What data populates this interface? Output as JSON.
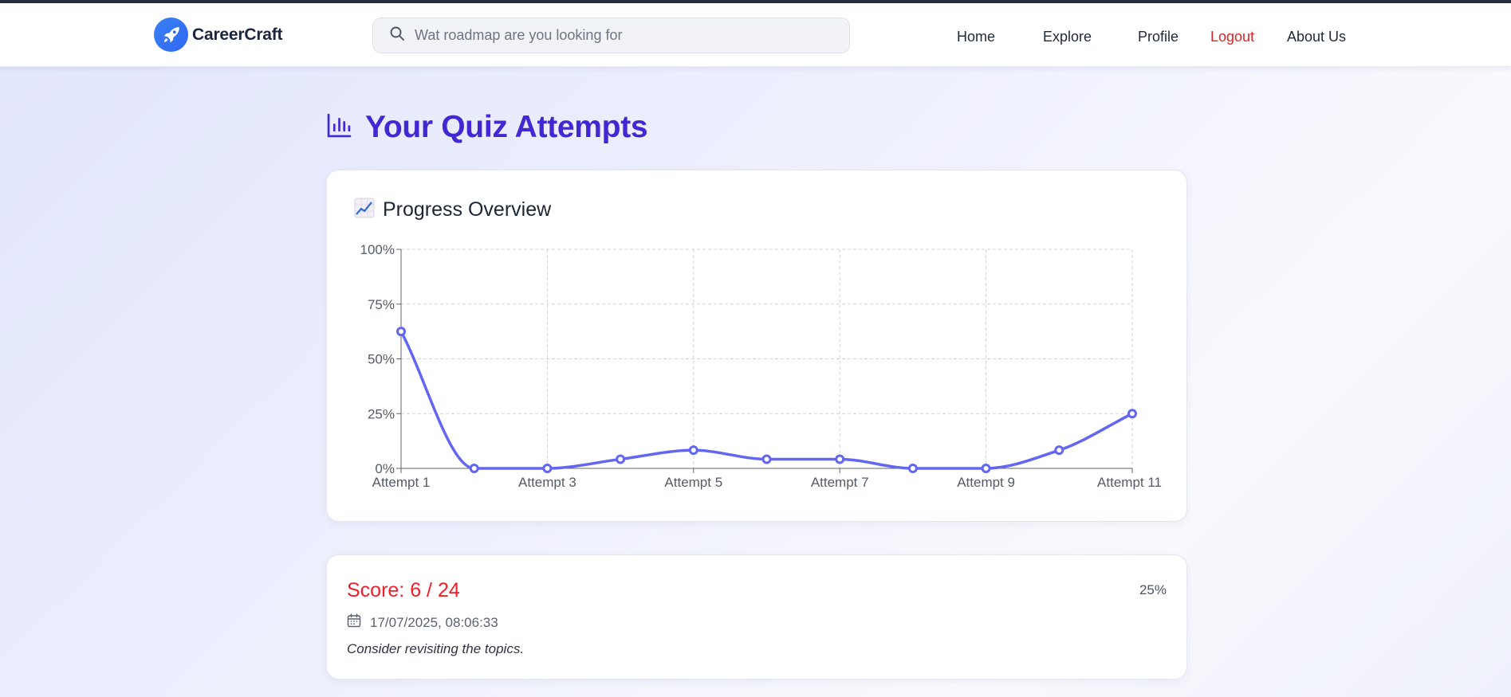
{
  "brand": {
    "name": "CareerCraft",
    "icon": "rocket-icon"
  },
  "search": {
    "placeholder": "Wat roadmap are you looking for",
    "value": "",
    "icon": "search-icon"
  },
  "nav": {
    "home": "Home",
    "explore": "Explore",
    "profile": "Profile",
    "logout": "Logout",
    "about": "About Us"
  },
  "page": {
    "title": "Your Quiz Attempts",
    "title_icon": "bar-chart-icon"
  },
  "progress": {
    "title": "Progress Overview",
    "icon": "chart-increasing-emoji"
  },
  "chart_data": {
    "type": "line",
    "x": [
      "Attempt 1",
      "Attempt 2",
      "Attempt 3",
      "Attempt 4",
      "Attempt 5",
      "Attempt 6",
      "Attempt 7",
      "Attempt 8",
      "Attempt 9",
      "Attempt 10",
      "Attempt 11"
    ],
    "x_tick_labels": [
      "Attempt 1",
      "",
      "Attempt 3",
      "",
      "Attempt 5",
      "",
      "Attempt 7",
      "",
      "Attempt 9",
      "",
      "Attempt 11"
    ],
    "series": [
      {
        "values": [
          62.5,
          0,
          0,
          4.2,
          8.3,
          4.2,
          4.2,
          0,
          0,
          8.3,
          25
        ]
      }
    ],
    "y_ticks": [
      "0%",
      "25%",
      "50%",
      "75%",
      "100%"
    ],
    "ylim": [
      0,
      100
    ],
    "grid": true,
    "line_color": "#6366f1",
    "title": "",
    "xlabel": "",
    "ylabel": ""
  },
  "attempt": {
    "score": "Score: 6 / 24",
    "percent": "25%",
    "date": "17/07/2025, 08:06:33",
    "date_icon": "calendar-icon",
    "feedback": "Consider revisiting the topics."
  },
  "colors": {
    "accent": "#4327d3",
    "logout": "#dc2626",
    "score": "#ef1f2a",
    "chart_line": "#6366f1"
  }
}
